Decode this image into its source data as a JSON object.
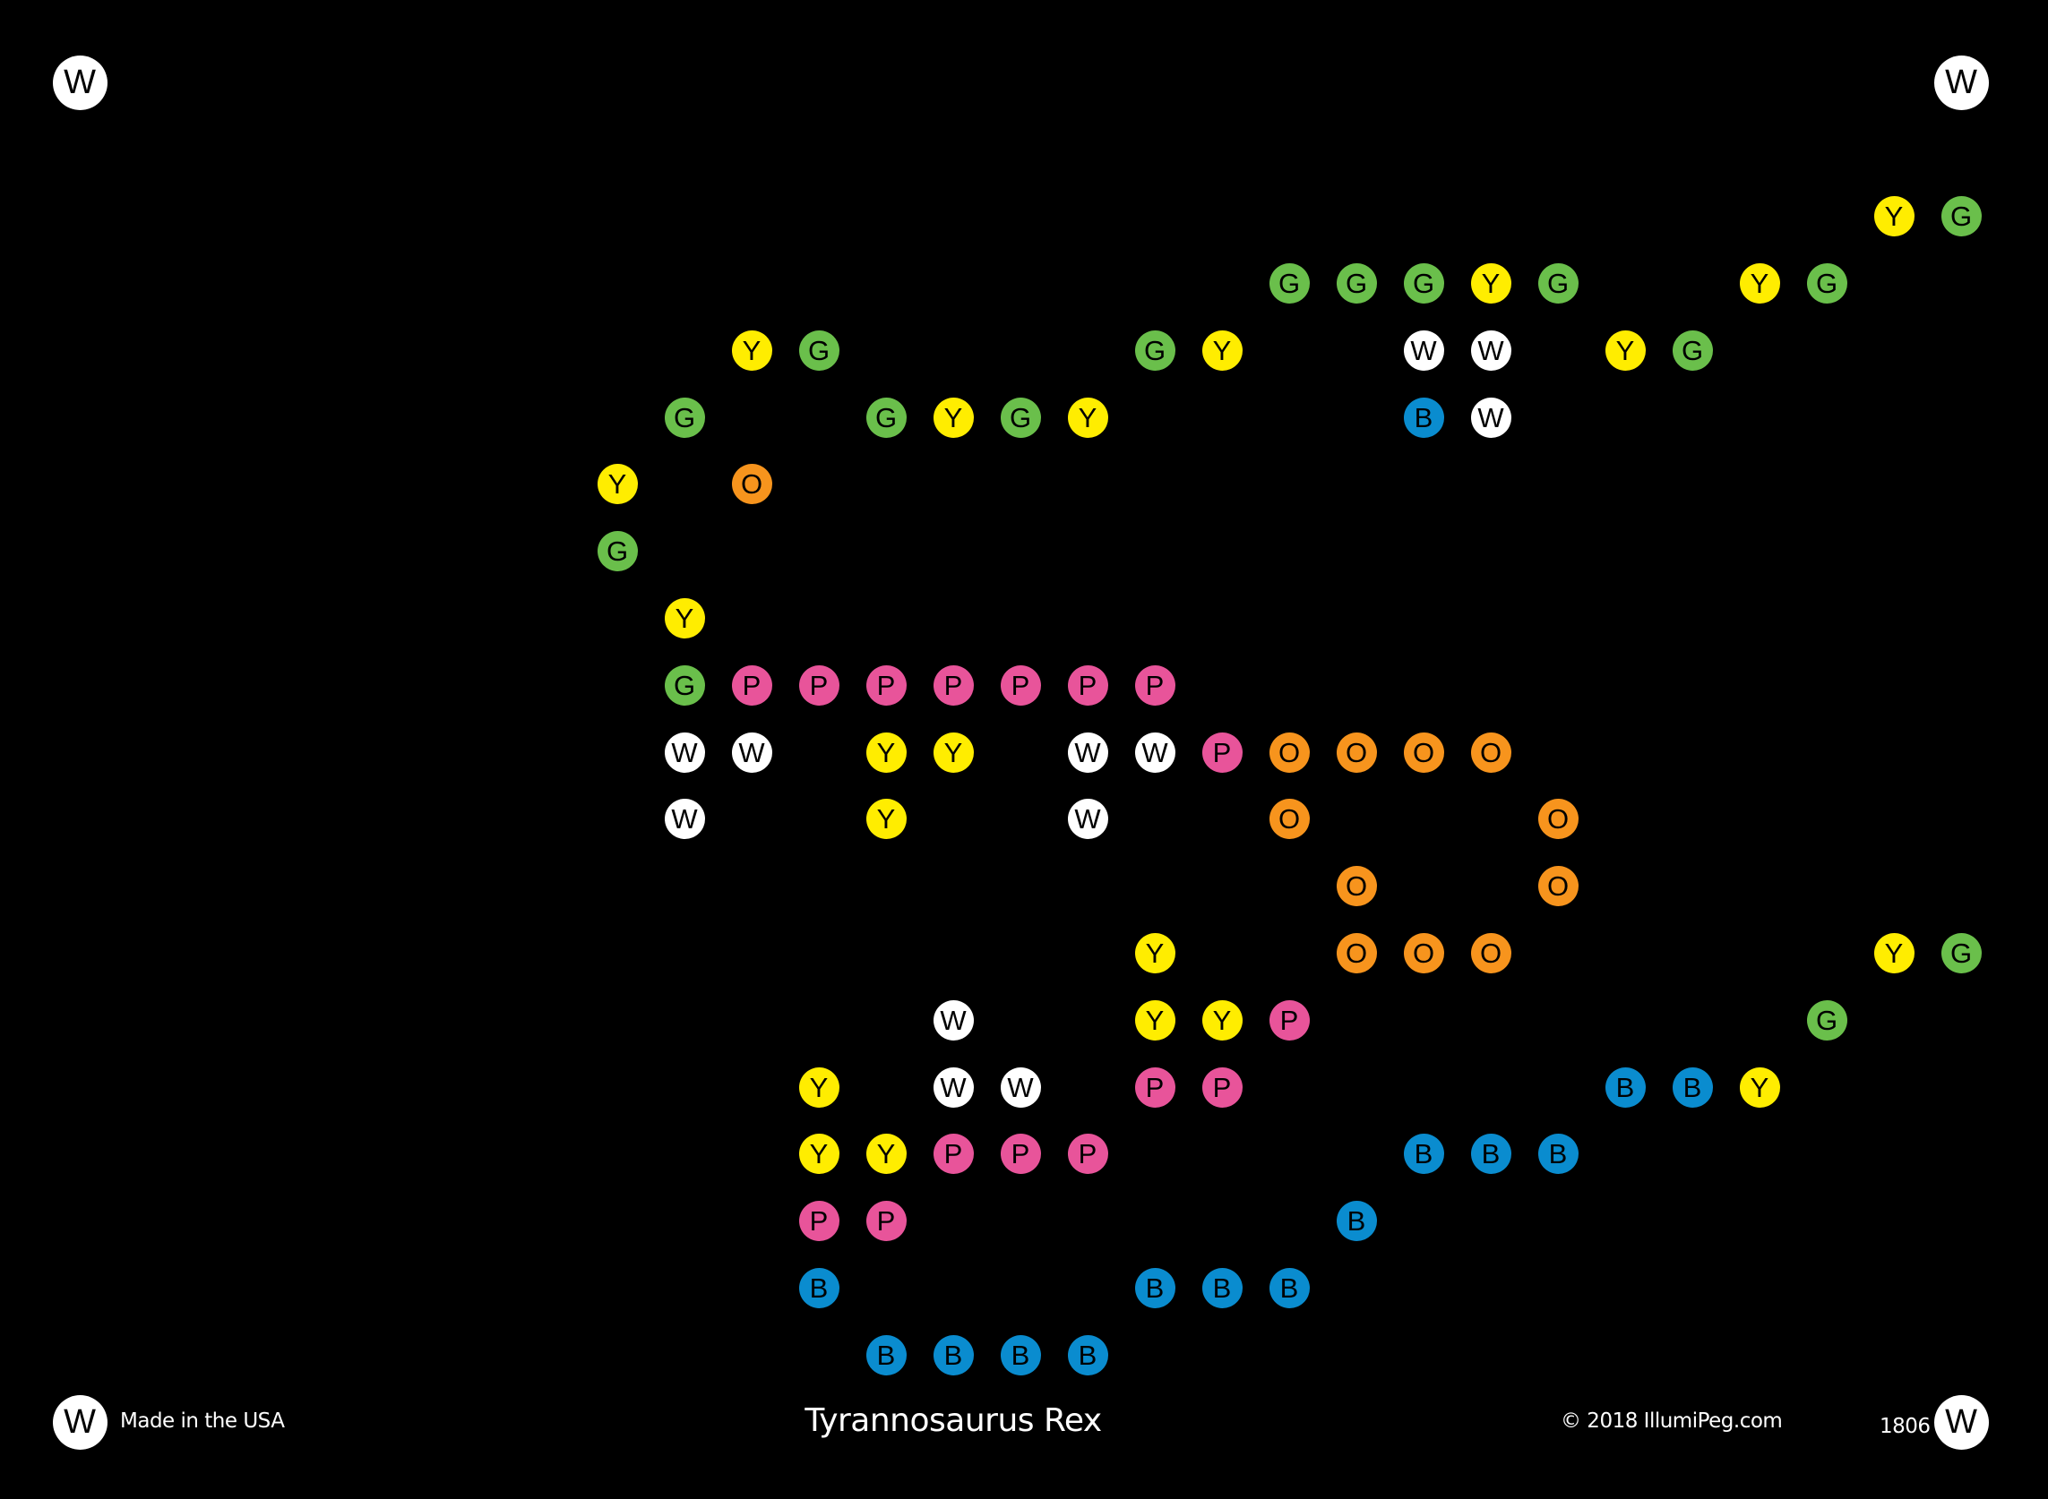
{
  "colors": {
    "Y": "#ffed00",
    "G": "#6abf4b",
    "B": "#0a8ccf",
    "P": "#e8549a",
    "O": "#f7941d",
    "W": "#ffffff"
  },
  "grid": {
    "columns": 29,
    "rows": 21
  },
  "corner_pegs": [
    [
      0,
      0,
      "W"
    ],
    [
      0,
      28,
      "W"
    ],
    [
      20,
      0,
      "W"
    ],
    [
      20,
      28,
      "W"
    ]
  ],
  "peg_runs": [
    [
      2,
      27,
      "YG"
    ],
    [
      3,
      18,
      "GGGYG..YG"
    ],
    [
      4,
      10,
      "YG....GY..WW.YG"
    ],
    [
      5,
      9,
      "G..GYGY....BW"
    ],
    [
      6,
      8,
      "Y.O"
    ],
    [
      7,
      8,
      "G"
    ],
    [
      8,
      9,
      "Y"
    ],
    [
      9,
      9,
      "GPPPPPPP"
    ],
    [
      10,
      9,
      "WW.YY.WWPOOOO"
    ],
    [
      11,
      9,
      "W..Y..W..O...O"
    ],
    [
      12,
      19,
      "O..O"
    ],
    [
      13,
      16,
      "Y..OOO.....YG"
    ],
    [
      14,
      13,
      "W..YYP.......G"
    ],
    [
      15,
      11,
      "Y.WW.PP.....BBY"
    ],
    [
      16,
      11,
      "YYPPP....BBB"
    ],
    [
      17,
      11,
      "PP......B"
    ],
    [
      18,
      11,
      "B....BBB"
    ],
    [
      19,
      12,
      "BBBB"
    ]
  ],
  "footer": {
    "made_in": "Made in the USA",
    "title": "Tyrannosaurus Rex",
    "copyright": "© 2018 IllumiPeg.com",
    "code": "1806"
  }
}
